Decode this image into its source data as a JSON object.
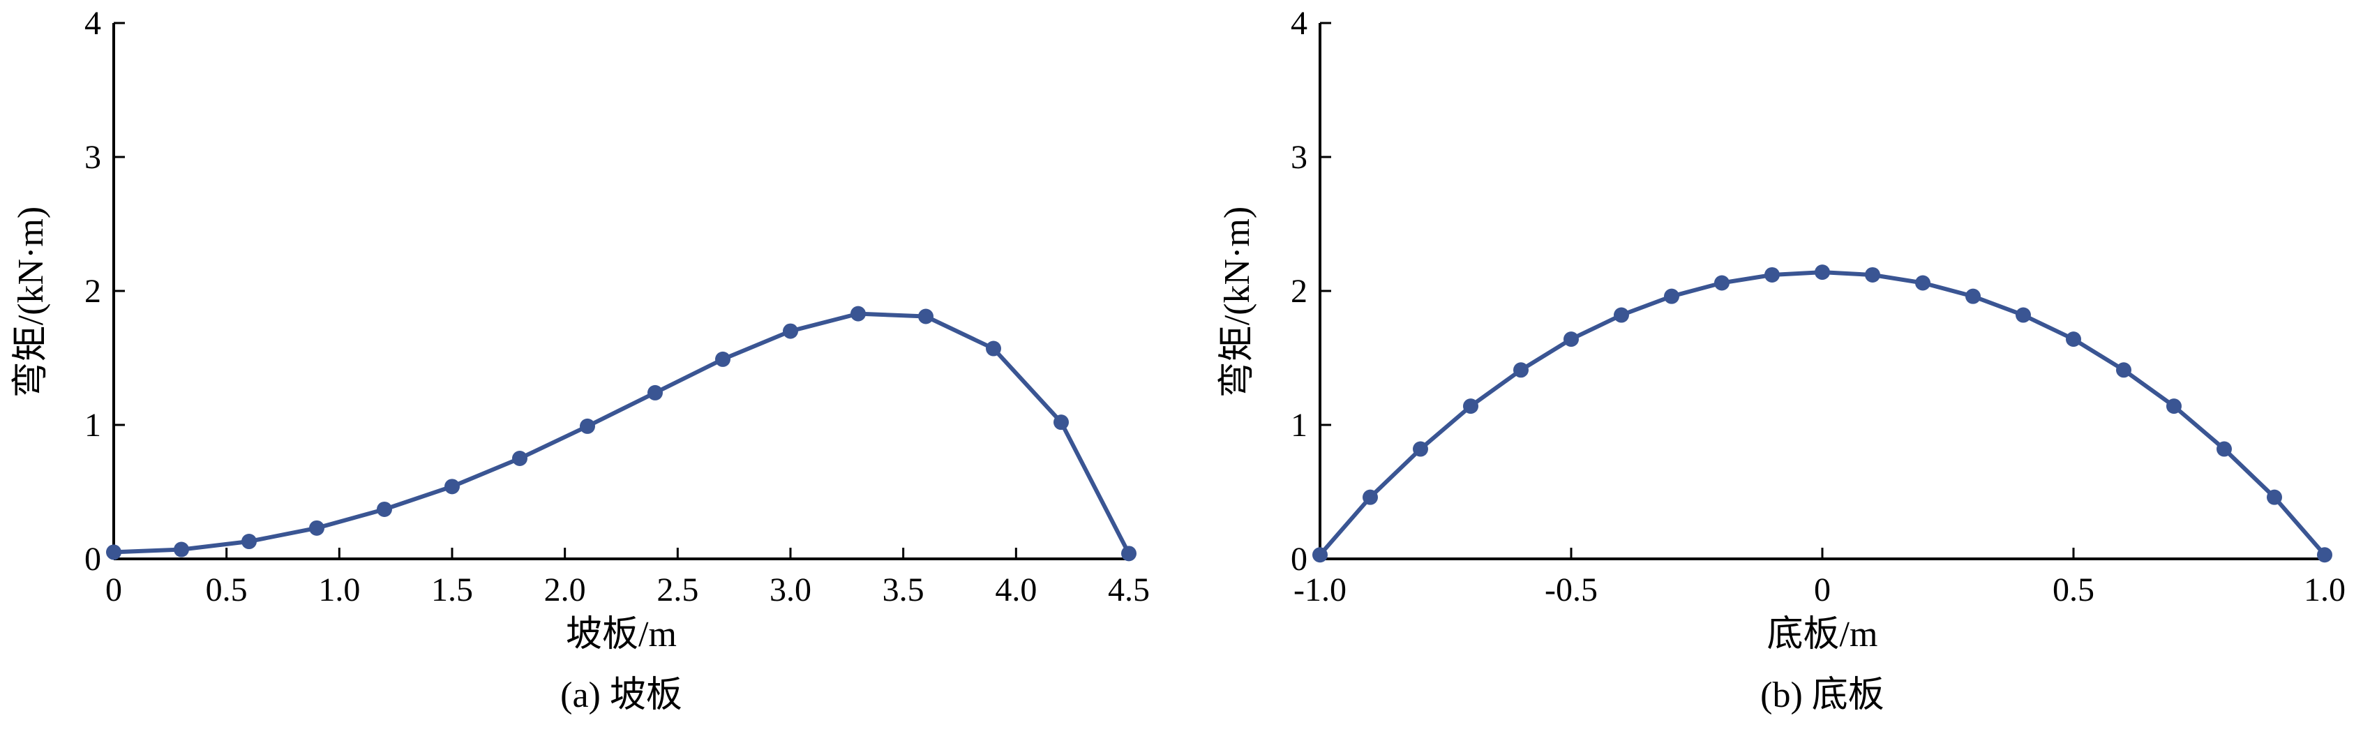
{
  "colors": {
    "series": "#3a5593",
    "axis": "#000000"
  },
  "chart_data": [
    {
      "type": "line",
      "caption": "(a) 坡板",
      "xlabel": "坡板/m",
      "ylabel": "弯矩/(kN·m)",
      "xlim": [
        0,
        4.5
      ],
      "ylim": [
        0,
        4
      ],
      "xticks": [
        0,
        0.5,
        1.0,
        1.5,
        2.0,
        2.5,
        3.0,
        3.5,
        4.0,
        4.5
      ],
      "xtick_labels": [
        "0",
        "0.5",
        "1.0",
        "1.5",
        "2.0",
        "2.5",
        "3.0",
        "3.5",
        "4.0",
        "4.5"
      ],
      "yticks": [
        0,
        1,
        2,
        3,
        4
      ],
      "ytick_labels": [
        "0",
        "1",
        "2",
        "3",
        "4"
      ],
      "grid": false,
      "legend": "none",
      "series": [
        {
          "x": [
            0,
            0.3,
            0.6,
            0.9,
            1.2,
            1.5,
            1.8,
            2.1,
            2.4,
            2.7,
            3.0,
            3.3,
            3.6,
            3.9,
            4.2,
            4.5
          ],
          "y": [
            0.05,
            0.07,
            0.13,
            0.23,
            0.37,
            0.54,
            0.75,
            0.99,
            1.24,
            1.49,
            1.7,
            1.83,
            1.81,
            1.57,
            1.02,
            0.04
          ]
        }
      ]
    },
    {
      "type": "line",
      "caption": "(b) 底板",
      "xlabel": "底板/m",
      "ylabel": "弯矩/(kN·m)",
      "xlim": [
        -1.0,
        1.0
      ],
      "ylim": [
        0,
        4
      ],
      "xticks": [
        -1.0,
        -0.5,
        0,
        0.5,
        1.0
      ],
      "xtick_labels": [
        "-1.0",
        "-0.5",
        "0",
        "0.5",
        "1.0"
      ],
      "yticks": [
        0,
        1,
        2,
        3,
        4
      ],
      "ytick_labels": [
        "0",
        "1",
        "2",
        "3",
        "4"
      ],
      "grid": false,
      "legend": "none",
      "series": [
        {
          "x": [
            -1.0,
            -0.9,
            -0.8,
            -0.7,
            -0.6,
            -0.5,
            -0.4,
            -0.3,
            -0.2,
            -0.1,
            0,
            0.1,
            0.2,
            0.3,
            0.4,
            0.5,
            0.6,
            0.7,
            0.8,
            0.9,
            1.0
          ],
          "y": [
            0.03,
            0.46,
            0.82,
            1.14,
            1.41,
            1.64,
            1.82,
            1.96,
            2.06,
            2.12,
            2.14,
            2.12,
            2.06,
            1.96,
            1.82,
            1.64,
            1.41,
            1.14,
            0.82,
            0.46,
            0.03
          ]
        }
      ]
    }
  ]
}
